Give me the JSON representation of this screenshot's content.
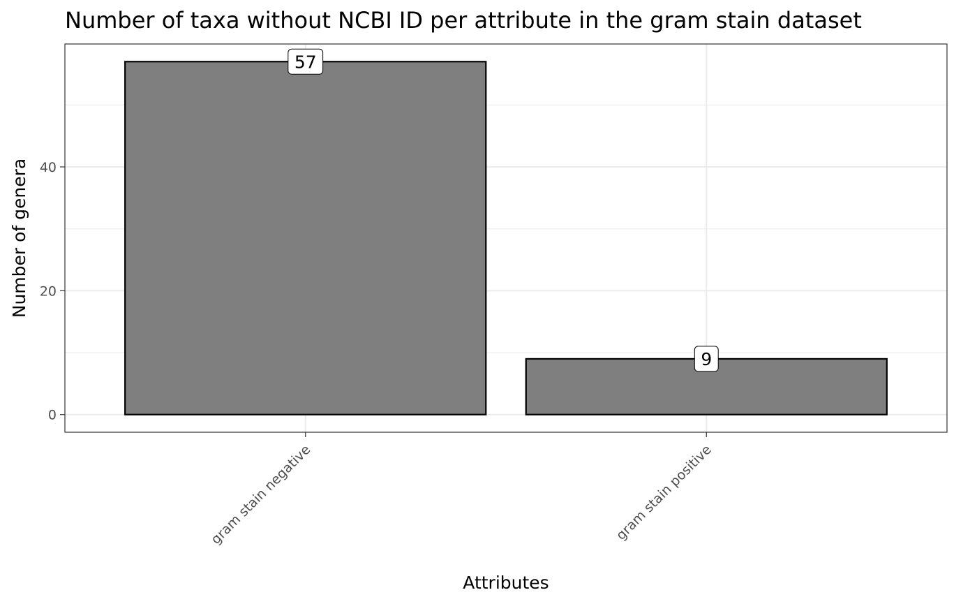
{
  "chart_data": {
    "type": "bar",
    "title": "Number of taxa without NCBI ID per attribute in the gram stain dataset",
    "xlabel": "Attributes",
    "ylabel": "Number of genera",
    "categories": [
      "gram stain negative",
      "gram stain positive"
    ],
    "values": [
      57,
      9
    ],
    "data_labels": [
      "57",
      "9"
    ],
    "ylim": [
      -2.85,
      59.85
    ],
    "yticks": [
      0,
      20,
      40
    ],
    "ytick_labels": [
      "0",
      "20",
      "40"
    ],
    "grid": true,
    "bar_fill": "#7f7f7f",
    "bar_stroke": "#000000",
    "legend": "none"
  }
}
